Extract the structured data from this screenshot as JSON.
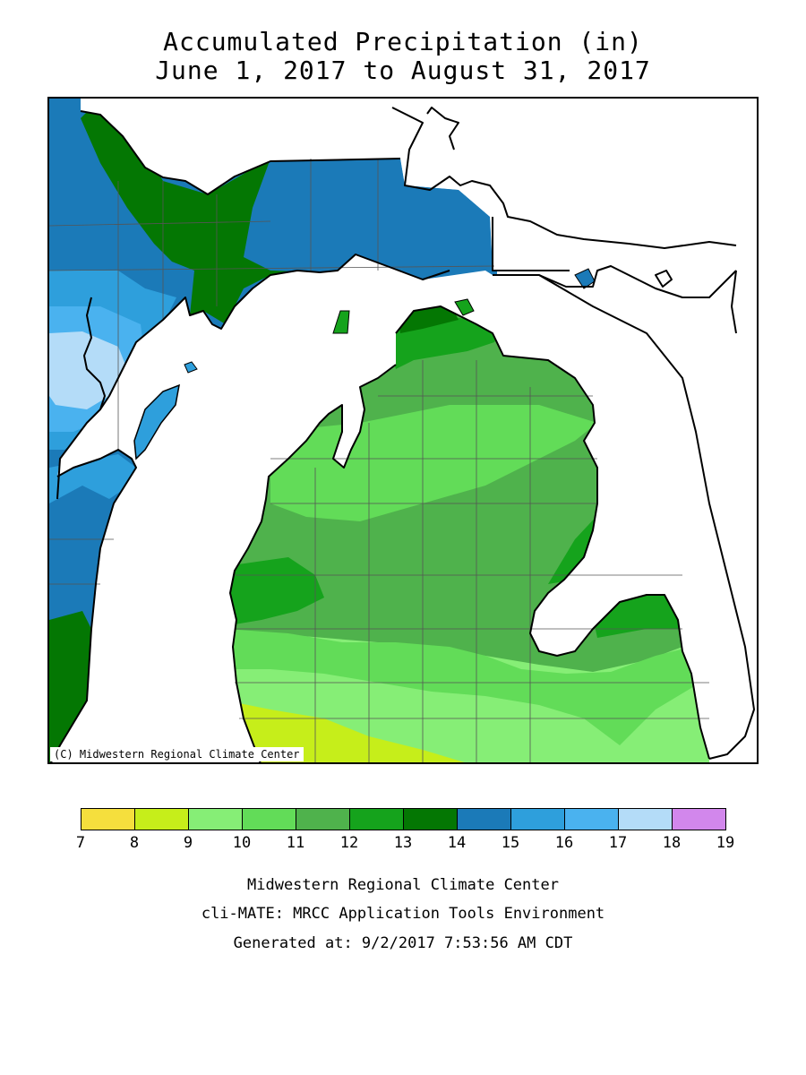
{
  "title": {
    "line1": "Accumulated Precipitation (in)",
    "line2": "June 1, 2017 to August 31, 2017"
  },
  "map": {
    "copyright": "(C) Midwestern Regional Climate Center"
  },
  "legend": {
    "ticks": [
      "7",
      "8",
      "9",
      "10",
      "11",
      "12",
      "13",
      "14",
      "15",
      "16",
      "17",
      "18",
      "19"
    ],
    "colors": [
      "#f5df3d",
      "#c6ee1a",
      "#86ee76",
      "#62dc58",
      "#4fb24c",
      "#15a31c",
      "#047703",
      "#1b7ab8",
      "#2e9fdc",
      "#4ab2ef",
      "#b4dcf8",
      "#d287ec"
    ]
  },
  "footer": {
    "line1": "Midwestern Regional Climate Center",
    "line2": "cli-MATE: MRCC Application Tools Environment",
    "line3": "Generated at: 9/2/2017 7:53:56 AM CDT"
  }
}
